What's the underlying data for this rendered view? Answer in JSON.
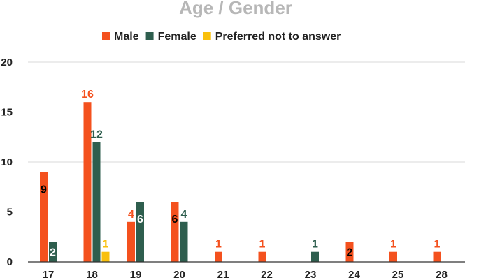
{
  "chart_data": {
    "type": "bar",
    "title": "Age / Gender",
    "categories": [
      "17",
      "18",
      "19",
      "20",
      "21",
      "22",
      "23",
      "24",
      "25",
      "28"
    ],
    "series": [
      {
        "name": "Male",
        "color": "#f4511e",
        "values": [
          9,
          16,
          4,
          6,
          1,
          1,
          0,
          2,
          1,
          1
        ]
      },
      {
        "name": "Female",
        "color": "#2e5e4e",
        "values": [
          2,
          12,
          6,
          4,
          0,
          0,
          1,
          0,
          0,
          0
        ]
      },
      {
        "name": "Preferred not to answer",
        "color": "#f9c00c",
        "values": [
          0,
          1,
          0,
          0,
          0,
          0,
          0,
          0,
          0,
          0
        ]
      }
    ],
    "ylim": [
      0,
      20
    ],
    "yticks": [
      0,
      5,
      10,
      15,
      20
    ],
    "grid": true,
    "legend_position": "top-center",
    "data_labels": [
      {
        "series": 0,
        "category": 0,
        "text": "9",
        "color": "#000000",
        "inside": true
      },
      {
        "series": 1,
        "category": 0,
        "text": "2",
        "color": "#ffffff",
        "inside": true
      },
      {
        "series": 0,
        "category": 1,
        "text": "16",
        "color": "#f4511e",
        "inside": false
      },
      {
        "series": 1,
        "category": 1,
        "text": "12",
        "color": "#2e5e4e",
        "inside": false
      },
      {
        "series": 2,
        "category": 1,
        "text": "1",
        "color": "#f9c00c",
        "inside": false
      },
      {
        "series": 0,
        "category": 2,
        "text": "4",
        "color": "#f4511e",
        "inside": false
      },
      {
        "series": 1,
        "category": 2,
        "text": "6",
        "color": "#ffffff",
        "inside": true
      },
      {
        "series": 0,
        "category": 3,
        "text": "6",
        "color": "#000000",
        "inside": true
      },
      {
        "series": 1,
        "category": 3,
        "text": "4",
        "color": "#2e5e4e",
        "inside": false
      },
      {
        "series": 0,
        "category": 4,
        "text": "1",
        "color": "#f4511e",
        "inside": false
      },
      {
        "series": 0,
        "category": 5,
        "text": "1",
        "color": "#f4511e",
        "inside": false
      },
      {
        "series": 1,
        "category": 6,
        "text": "1",
        "color": "#2e5e4e",
        "inside": false
      },
      {
        "series": 0,
        "category": 7,
        "text": "2",
        "color": "#000000",
        "inside": true
      },
      {
        "series": 0,
        "category": 8,
        "text": "1",
        "color": "#f4511e",
        "inside": false
      },
      {
        "series": 0,
        "category": 9,
        "text": "1",
        "color": "#f4511e",
        "inside": false
      }
    ]
  }
}
